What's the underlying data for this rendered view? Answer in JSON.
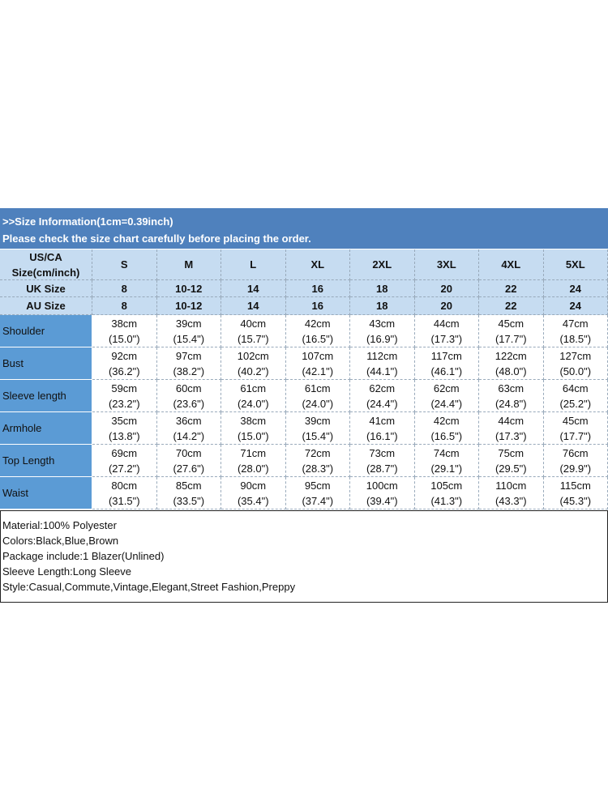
{
  "header": {
    "lines": [
      ">>Size Information(1cm=0.39inch)",
      "Please check the size chart carefully before placing the order."
    ]
  },
  "table": {
    "corner": [
      "US/CA",
      "Size(cm/inch)"
    ],
    "sizes": [
      "S",
      "M",
      "L",
      "XL",
      "2XL",
      "3XL",
      "4XL",
      "5XL"
    ],
    "uk": {
      "label": "UK Size",
      "values": [
        "8",
        "10-12",
        "14",
        "16",
        "18",
        "20",
        "22",
        "24"
      ]
    },
    "au": {
      "label": "AU Size",
      "values": [
        "8",
        "10-12",
        "14",
        "16",
        "18",
        "20",
        "22",
        "24"
      ]
    },
    "rows": [
      {
        "name": "Shoulder",
        "cm": [
          "38cm",
          "39cm",
          "40cm",
          "42cm",
          "43cm",
          "44cm",
          "45cm",
          "47cm"
        ],
        "inch": [
          "(15.0\")",
          "(15.4\")",
          "(15.7\")",
          "(16.5\")",
          "(16.9\")",
          "(17.3\")",
          "(17.7\")",
          "(18.5\")"
        ]
      },
      {
        "name": "Bust",
        "cm": [
          "92cm",
          "97cm",
          "102cm",
          "107cm",
          "112cm",
          "117cm",
          "122cm",
          "127cm"
        ],
        "inch": [
          "(36.2\")",
          "(38.2\")",
          "(40.2\")",
          "(42.1\")",
          "(44.1\")",
          "(46.1\")",
          "(48.0\")",
          "(50.0\")"
        ]
      },
      {
        "name": "Sleeve length",
        "cm": [
          "59cm",
          "60cm",
          "61cm",
          "61cm",
          "62cm",
          "62cm",
          "63cm",
          "64cm"
        ],
        "inch": [
          "(23.2\")",
          "(23.6\")",
          "(24.0\")",
          "(24.0\")",
          "(24.4\")",
          "(24.4\")",
          "(24.8\")",
          "(25.2\")"
        ]
      },
      {
        "name": "Armhole",
        "cm": [
          "35cm",
          "36cm",
          "38cm",
          "39cm",
          "41cm",
          "42cm",
          "44cm",
          "45cm"
        ],
        "inch": [
          "(13.8\")",
          "(14.2\")",
          "(15.0\")",
          "(15.4\")",
          "(16.1\")",
          "(16.5\")",
          "(17.3\")",
          "(17.7\")"
        ]
      },
      {
        "name": "Top Length",
        "cm": [
          "69cm",
          "70cm",
          "71cm",
          "72cm",
          "73cm",
          "74cm",
          "75cm",
          "76cm"
        ],
        "inch": [
          "(27.2\")",
          "(27.6\")",
          "(28.0\")",
          "(28.3\")",
          "(28.7\")",
          "(29.1\")",
          "(29.5\")",
          "(29.9\")"
        ]
      },
      {
        "name": "Waist",
        "cm": [
          "80cm",
          "85cm",
          "90cm",
          "95cm",
          "100cm",
          "105cm",
          "110cm",
          "115cm"
        ],
        "inch": [
          "(31.5\")",
          "(33.5\")",
          "(35.4\")",
          "(37.4\")",
          "(39.4\")",
          "(41.3\")",
          "(43.3\")",
          "(45.3\")"
        ]
      }
    ]
  },
  "info": {
    "lines": [
      "Material:100% Polyester",
      "Colors:Black,Blue,Brown",
      "Package include:1 Blazer(Unlined)",
      "Sleeve Length:Long Sleeve",
      "Style:Casual,Commute,Vintage,Elegant,Street Fashion,Preppy"
    ]
  }
}
